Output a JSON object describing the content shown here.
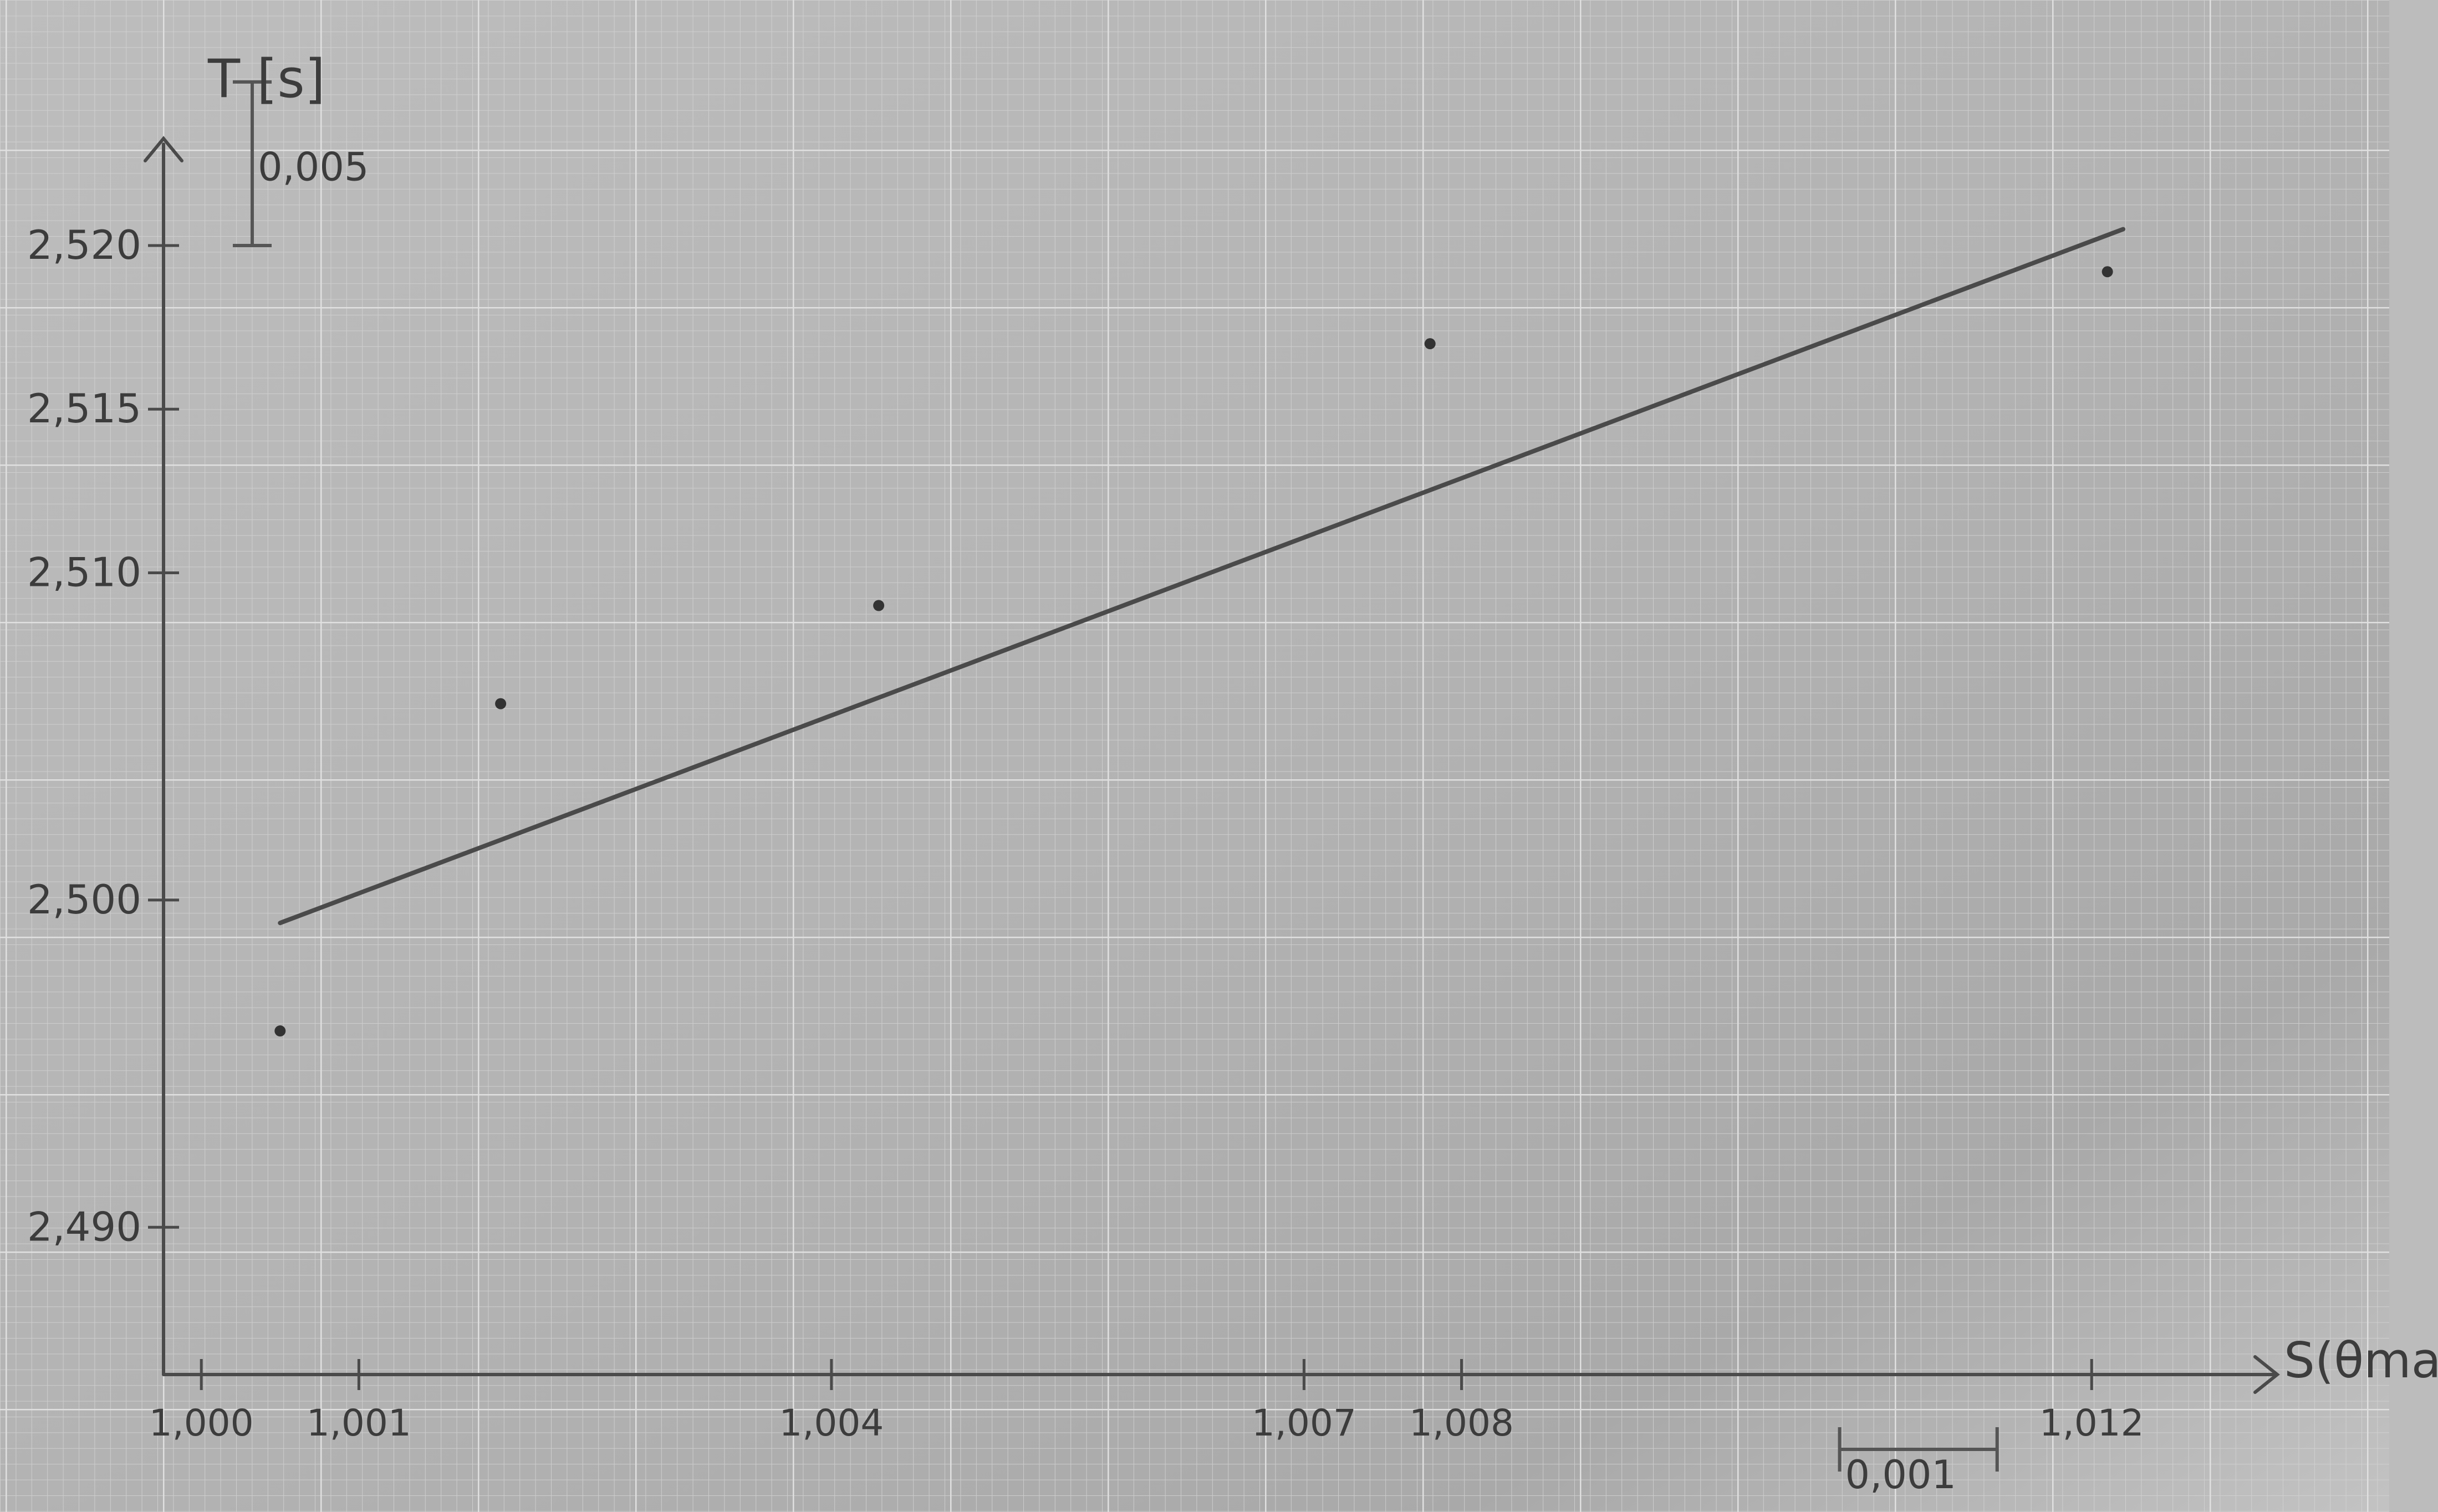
{
  "chart_data": {
    "type": "scatter",
    "title": "",
    "ylabel": "T [s]",
    "xlabel": "S(θmax)",
    "x_unit": "",
    "y_unit": "",
    "x_ticks": [
      {
        "value": 1.0,
        "label": "1,000"
      },
      {
        "value": 1.001,
        "label": "1,001"
      },
      {
        "value": 1.004,
        "label": "1,004"
      },
      {
        "value": 1.007,
        "label": "1,007"
      },
      {
        "value": 1.008,
        "label": "1,008"
      },
      {
        "value": 1.012,
        "label": "1,012"
      }
    ],
    "y_ticks": [
      {
        "value": 2.49,
        "label": "2,490"
      },
      {
        "value": 2.5,
        "label": "2,500"
      },
      {
        "value": 2.51,
        "label": "2,510"
      },
      {
        "value": 2.515,
        "label": "2,515"
      },
      {
        "value": 2.52,
        "label": "2,520"
      }
    ],
    "xlim": [
      0.99976,
      1.01315
    ],
    "ylim": [
      2.4855,
      2.5231
    ],
    "points": [
      {
        "x": 1.0005,
        "y": 2.496
      },
      {
        "x": 1.0019,
        "y": 2.506
      },
      {
        "x": 1.0043,
        "y": 2.509
      },
      {
        "x": 1.0078,
        "y": 2.517
      },
      {
        "x": 1.0121,
        "y": 2.5192
      }
    ],
    "fit_line": {
      "x": [
        1.0005,
        1.0122
      ],
      "y": [
        2.4993,
        2.5205
      ]
    },
    "scale_bars": [
      {
        "axis": "y",
        "length": 0.005,
        "label": "0,005"
      },
      {
        "axis": "x",
        "length": 0.001,
        "label": "0,001"
      }
    ],
    "grid": true
  }
}
